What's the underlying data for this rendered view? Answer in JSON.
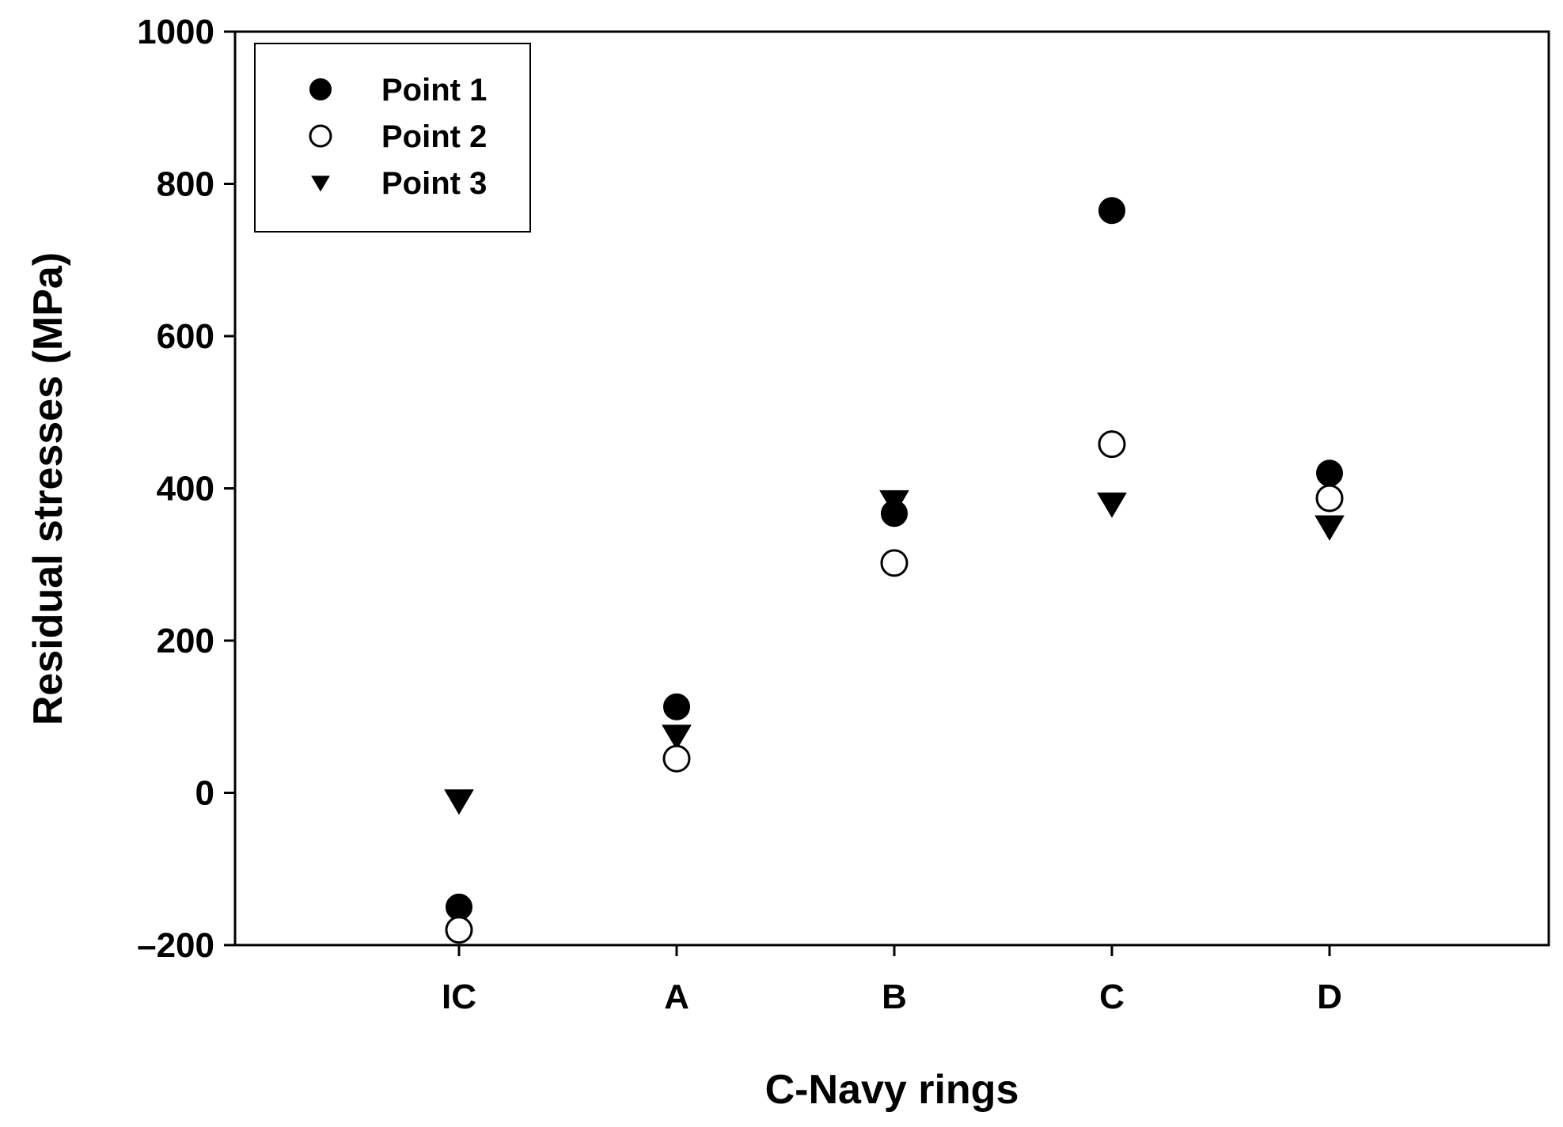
{
  "chart_data": {
    "type": "scatter",
    "title": "",
    "xlabel": "C-Navy rings",
    "ylabel": "Residual stresses (MPa)",
    "categories": [
      "IC",
      "A",
      "B",
      "C",
      "D"
    ],
    "ylim": [
      -200,
      1000
    ],
    "yticks": [
      -200,
      0,
      200,
      400,
      600,
      800,
      1000
    ],
    "ytick_labels": [
      "–200",
      "0",
      "200",
      "400",
      "600",
      "800",
      "1000"
    ],
    "grid": false,
    "legend_position": "top-left",
    "series": [
      {
        "name": "Point 1",
        "marker": "filled-circle",
        "color": "#000000",
        "values": [
          -150,
          113,
          367,
          765,
          420
        ]
      },
      {
        "name": "Point 2",
        "marker": "open-circle",
        "color": "#000000",
        "values": [
          -180,
          45,
          302,
          458,
          387
        ]
      },
      {
        "name": "Point 3",
        "marker": "filled-triangle-down",
        "color": "#000000",
        "values": [
          -10,
          75,
          383,
          380,
          350
        ]
      }
    ]
  }
}
